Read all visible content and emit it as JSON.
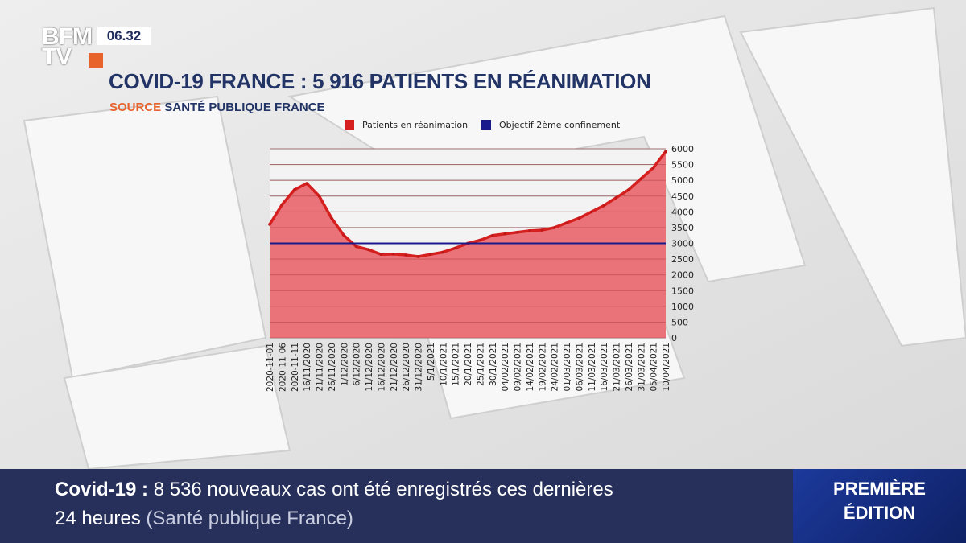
{
  "broadcast": {
    "logo_line1": "BFM",
    "logo_line2": "TV",
    "clock": "06.32"
  },
  "headline": {
    "title": "COVID-19 FRANCE : 5 916 PATIENTS EN RÉANIMATION",
    "source_label": "SOURCE",
    "source_value": "SANTÉ PUBLIQUE FRANCE"
  },
  "chart_data": {
    "type": "area",
    "legend": [
      {
        "label": "Patients en réanimation",
        "color": "#d61f1f"
      },
      {
        "label": "Objectif 2ème confinement",
        "color": "#1a1a8c"
      }
    ],
    "ylim": [
      0,
      6000
    ],
    "yticks": [
      0,
      500,
      1000,
      1500,
      2000,
      2500,
      3000,
      3500,
      4000,
      4500,
      5000,
      5500,
      6000
    ],
    "y_axis_position": "right",
    "grid": true,
    "x_tick_labels": [
      "2020-11-01",
      "2020-11-06",
      "2020-11-11",
      "16/11/2020",
      "21/11/2020",
      "26/11/2020",
      "1/12/2020",
      "6/12/2020",
      "11/12/2020",
      "16/12/2020",
      "21/12/2020",
      "26/12/2020",
      "31/12/2020",
      "5/1/2021",
      "10/1/2021",
      "15/1/2021",
      "20/1/2021",
      "25/1/2021",
      "30/1/2021",
      "04/02/2021",
      "09/02/2021",
      "14/02/2021",
      "19/02/2021",
      "24/02/2021",
      "01/03/2021",
      "06/03/2021",
      "11/03/2021",
      "16/03/2021",
      "21/03/2021",
      "26/03/2021",
      "31/03/2021",
      "05/04/2021",
      "10/04/2021"
    ],
    "series": [
      {
        "name": "Patients en réanimation",
        "values": [
          3600,
          4230,
          4700,
          4900,
          4500,
          3800,
          3250,
          2900,
          2800,
          2650,
          2660,
          2630,
          2580,
          2650,
          2720,
          2850,
          3000,
          3100,
          3250,
          3300,
          3350,
          3400,
          3420,
          3500,
          3650,
          3800,
          4000,
          4200,
          4450,
          4700,
          5050,
          5400,
          5916
        ]
      },
      {
        "name": "Objectif 2ème confinement",
        "constant": 3000
      }
    ]
  },
  "ticker": {
    "tag": "Covid-19",
    "separator": " : ",
    "line1": "8 536 nouveaux cas ont été enregistrés ces dernières",
    "line2": "24 heures",
    "line2_source": "(Santé publique France)"
  },
  "edition": {
    "line1": "PREMIÈRE",
    "line2": "ÉDITION"
  }
}
